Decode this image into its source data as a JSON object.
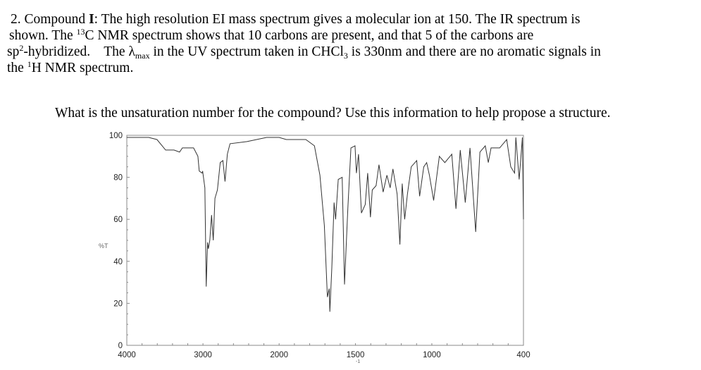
{
  "question": {
    "line1": {
      "a": "2.  Compound ",
      "bold": "I",
      "b": ":  The high resolution EI mass spectrum gives a molecular ion at 150.  The IR  spectrum is"
    },
    "line2": {
      "a": "shown.  The ",
      "sup": "13",
      "b": "C NMR spectrum shows that 10 carbons are present, and that 5 of the carbons are"
    },
    "line3": {
      "a": "sp",
      "sup": "2",
      "b": "-hybridized.    The λ",
      "sub": "max",
      "c": " in the UV spectrum taken in CHCl",
      "sub2": "3",
      "d": " is 330nm and there are no aromatic signals in"
    },
    "line4": {
      "a": "the ",
      "sup": "1",
      "b": "H NMR spectrum."
    },
    "prompt": "What is the unsaturation number for the compound?  Use this information to help propose a structure."
  },
  "chart_data": {
    "type": "line",
    "title": "",
    "xlabel": "",
    "xlabel_fragment": "-1",
    "ylabel": "%T",
    "xlim": [
      4000,
      400
    ],
    "ylim": [
      0,
      100
    ],
    "x_scale": "piecewise: 4000-2000 compressed, 2000-400 expanded",
    "x_ticks": [
      4000,
      3000,
      2000,
      1500,
      1000,
      400
    ],
    "y_ticks": [
      0,
      20,
      40,
      60,
      80,
      100
    ],
    "grid": false,
    "series": [
      {
        "points": [
          [
            4000,
            99
          ],
          [
            3712,
            99
          ],
          [
            3604,
            98
          ],
          [
            3490,
            93
          ],
          [
            3380,
            93
          ],
          [
            3307,
            92
          ],
          [
            3270,
            94
          ],
          [
            3123,
            94
          ],
          [
            3067,
            90
          ],
          [
            3049,
            83
          ],
          [
            3012,
            82
          ],
          [
            3005,
            83
          ],
          [
            2975,
            75
          ],
          [
            2957,
            28
          ],
          [
            2940,
            49
          ],
          [
            2929,
            46
          ],
          [
            2910,
            50
          ],
          [
            2887,
            62
          ],
          [
            2865,
            50
          ],
          [
            2843,
            70
          ],
          [
            2810,
            74
          ],
          [
            2773,
            87
          ],
          [
            2738,
            88
          ],
          [
            2710,
            78
          ],
          [
            2680,
            91
          ],
          [
            2645,
            96
          ],
          [
            2422,
            97
          ],
          [
            2165,
            99
          ],
          [
            2000,
            99
          ],
          [
            1953,
            98
          ],
          [
            1825,
            98
          ],
          [
            1769,
            95
          ],
          [
            1733,
            81
          ],
          [
            1704,
            57
          ],
          [
            1684,
            23
          ],
          [
            1672,
            27
          ],
          [
            1668,
            16
          ],
          [
            1655,
            37
          ],
          [
            1640,
            68
          ],
          [
            1630,
            60
          ],
          [
            1613,
            79
          ],
          [
            1587,
            80
          ],
          [
            1572,
            29
          ],
          [
            1550,
            65
          ],
          [
            1530,
            94
          ],
          [
            1503,
            95
          ],
          [
            1494,
            82
          ],
          [
            1480,
            91
          ],
          [
            1461,
            63
          ],
          [
            1436,
            67
          ],
          [
            1420,
            82
          ],
          [
            1402,
            61
          ],
          [
            1390,
            74
          ],
          [
            1365,
            76
          ],
          [
            1346,
            86
          ],
          [
            1319,
            73
          ],
          [
            1294,
            81
          ],
          [
            1273,
            75
          ],
          [
            1255,
            84
          ],
          [
            1227,
            72
          ],
          [
            1209,
            48
          ],
          [
            1194,
            77
          ],
          [
            1178,
            60
          ],
          [
            1160,
            72
          ],
          [
            1135,
            85
          ],
          [
            1099,
            88
          ],
          [
            1080,
            71
          ],
          [
            1053,
            85
          ],
          [
            1034,
            87
          ],
          [
            1016,
            81
          ],
          [
            988,
            69
          ],
          [
            951,
            90
          ],
          [
            915,
            87
          ],
          [
            869,
            91
          ],
          [
            842,
            65
          ],
          [
            814,
            93
          ],
          [
            781,
            68
          ],
          [
            750,
            94
          ],
          [
            713,
            54
          ],
          [
            685,
            92
          ],
          [
            650,
            95
          ],
          [
            630,
            87
          ],
          [
            612,
            94
          ],
          [
            556,
            94
          ],
          [
            510,
            98
          ],
          [
            483,
            85
          ],
          [
            458,
            82
          ],
          [
            450,
            99
          ],
          [
            428,
            79
          ],
          [
            407,
            99
          ],
          [
            400,
            60
          ]
        ]
      }
    ],
    "colors": {
      "line": "#333333",
      "frame": "#8a8a8a"
    }
  }
}
